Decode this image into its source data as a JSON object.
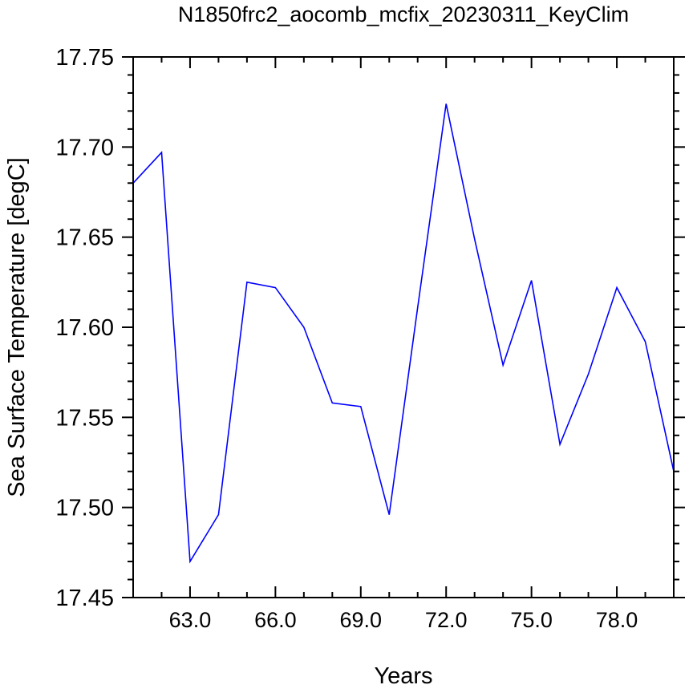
{
  "chart_data": {
    "type": "line",
    "title": "N1850frc2_aocomb_mcfix_20230311_KeyClim",
    "xlabel": "Years",
    "ylabel": "Sea Surface Temperature [degC]",
    "xlim": [
      61,
      80
    ],
    "ylim": [
      17.45,
      17.75
    ],
    "x_ticks": [
      63,
      66,
      69,
      72,
      75,
      78
    ],
    "x_tick_labels": [
      "63.0",
      "66.0",
      "69.0",
      "72.0",
      "75.0",
      "78.0"
    ],
    "y_ticks": [
      17.45,
      17.5,
      17.55,
      17.6,
      17.65,
      17.7,
      17.75
    ],
    "y_tick_labels": [
      "17.45",
      "17.50",
      "17.55",
      "17.60",
      "17.65",
      "17.70",
      "17.75"
    ],
    "grid": false,
    "series": [
      {
        "color": "#0000ff",
        "x": [
          61,
          62,
          63,
          64,
          65,
          66,
          67,
          68,
          69,
          70,
          71,
          72,
          73,
          74,
          75,
          76,
          77,
          78,
          79,
          80
        ],
        "y": [
          17.68,
          17.697,
          17.47,
          17.496,
          17.625,
          17.622,
          17.6,
          17.558,
          17.556,
          17.496,
          17.611,
          17.724,
          17.649,
          17.579,
          17.626,
          17.535,
          17.574,
          17.622,
          17.592,
          17.52
        ]
      }
    ]
  }
}
